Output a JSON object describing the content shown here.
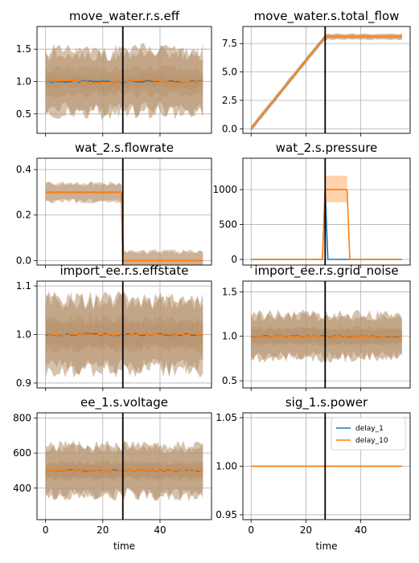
{
  "chart_data": [
    {
      "type": "line",
      "title": "move_water.r.s.eff",
      "xlabel": "",
      "ylim": [
        0.2,
        1.85
      ],
      "yticks": [
        0.5,
        1.0,
        1.5
      ],
      "ytick_labels": [
        "0.5",
        "1.0",
        "1.5"
      ],
      "xlim": [
        -3,
        58
      ],
      "xticks": [
        0,
        20,
        40
      ],
      "show_xtick_labels": false,
      "vline_x": 27,
      "grid": true,
      "series": [
        {
          "values": [
            1.0,
            1.0,
            1.0,
            1.0,
            1.0,
            1.0,
            1.0
          ],
          "x": [
            0,
            9,
            18,
            27,
            36,
            45,
            55
          ],
          "band": [
            0.75,
            1.25
          ],
          "outer": [
            0.45,
            1.6
          ]
        },
        {
          "values": [
            1.0,
            1.02,
            0.97,
            1.0,
            1.03,
            0.98,
            1.0
          ],
          "x": [
            0,
            9,
            18,
            27,
            36,
            45,
            55
          ],
          "band": [
            0.88,
            1.12
          ],
          "outer": [
            0.45,
            1.6
          ]
        }
      ]
    },
    {
      "type": "line",
      "title": "move_water.s.total_flow",
      "xlabel": "",
      "ylim": [
        -0.4,
        9.0
      ],
      "yticks": [
        0.0,
        2.5,
        5.0,
        7.5
      ],
      "ytick_labels": [
        "0.0",
        "2.5",
        "5.0",
        "7.5"
      ],
      "xlim": [
        -3,
        58
      ],
      "xticks": [
        0,
        20,
        40
      ],
      "show_xtick_labels": false,
      "vline_x": 27,
      "grid": true,
      "series": [
        {
          "x": [
            0,
            27,
            55
          ],
          "values": [
            0.0,
            8.1,
            8.1
          ],
          "band": [
            -0.25,
            0.35
          ]
        },
        {
          "x": [
            0,
            27,
            55
          ],
          "values": [
            0.0,
            8.1,
            8.1
          ],
          "band": [
            -0.25,
            0.35
          ]
        }
      ]
    },
    {
      "type": "line",
      "title": "wat_2.s.flowrate",
      "xlabel": "",
      "ylim": [
        -0.02,
        0.45
      ],
      "yticks": [
        0.0,
        0.2,
        0.4
      ],
      "ytick_labels": [
        "0.0",
        "0.2",
        "0.4"
      ],
      "xlim": [
        -3,
        58
      ],
      "xticks": [
        0,
        20,
        40
      ],
      "show_xtick_labels": false,
      "vline_x": 27,
      "grid": true,
      "series": [
        {
          "x": [
            0,
            26.5,
            27,
            55
          ],
          "values": [
            0.3,
            0.3,
            0.0,
            0.0
          ],
          "band": [
            0.25,
            0.35
          ]
        },
        {
          "x": [
            0,
            26.5,
            27,
            55
          ],
          "values": [
            0.3,
            0.3,
            0.0,
            0.0
          ],
          "band": [
            0.25,
            0.35
          ]
        }
      ]
    },
    {
      "type": "line",
      "title": "wat_2.s.pressure",
      "xlabel": "",
      "ylim": [
        -80,
        1450
      ],
      "yticks": [
        0,
        500,
        1000
      ],
      "ytick_labels": [
        "0",
        "500",
        "1000"
      ],
      "xlim": [
        -3,
        58
      ],
      "xticks": [
        0,
        20,
        40
      ],
      "show_xtick_labels": false,
      "vline_x": 27,
      "grid": true,
      "series": [
        {
          "x": [
            0,
            26,
            27,
            28,
            29,
            55
          ],
          "values": [
            0,
            0,
            1000,
            0,
            0,
            0
          ]
        },
        {
          "x": [
            0,
            26,
            27,
            35,
            36,
            55
          ],
          "values": [
            0,
            0,
            1000,
            1000,
            0,
            0
          ]
        }
      ]
    },
    {
      "type": "line",
      "title": "import_ee.r.s.effstate",
      "xlabel": "",
      "ylim": [
        0.89,
        1.11
      ],
      "yticks": [
        0.9,
        1.0,
        1.1
      ],
      "ytick_labels": [
        "0.9",
        "1.0",
        "1.1"
      ],
      "xlim": [
        -3,
        58
      ],
      "xticks": [
        0,
        20,
        40
      ],
      "show_xtick_labels": false,
      "vline_x": 27,
      "grid": true,
      "series": [
        {
          "x": [
            0,
            55
          ],
          "values": [
            1.0,
            1.0
          ],
          "band": [
            0.96,
            1.04
          ],
          "outer": [
            0.91,
            1.09
          ]
        },
        {
          "x": [
            0,
            55
          ],
          "values": [
            1.0,
            1.0
          ],
          "band": [
            0.97,
            1.03
          ],
          "outer": [
            0.91,
            1.09
          ]
        }
      ]
    },
    {
      "type": "line",
      "title": "import_ee.r.s.grid_noise",
      "xlabel": "",
      "ylim": [
        0.42,
        1.62
      ],
      "yticks": [
        0.5,
        1.0,
        1.5
      ],
      "ytick_labels": [
        "0.5",
        "1.0",
        "1.5"
      ],
      "xlim": [
        -3,
        58
      ],
      "xticks": [
        0,
        20,
        40
      ],
      "show_xtick_labels": false,
      "vline_x": 27,
      "grid": true,
      "series": [
        {
          "x": [
            0,
            55
          ],
          "values": [
            1.0,
            1.0
          ],
          "band": [
            0.88,
            1.12
          ],
          "outer": [
            0.7,
            1.3
          ]
        },
        {
          "x": [
            0,
            55
          ],
          "values": [
            1.0,
            1.0
          ],
          "band": [
            0.9,
            1.1
          ],
          "outer": [
            0.7,
            1.3
          ]
        }
      ]
    },
    {
      "type": "line",
      "title": "ee_1.s.voltage",
      "xlabel": "time",
      "ylim": [
        220,
        830
      ],
      "yticks": [
        400,
        600,
        800
      ],
      "ytick_labels": [
        "400",
        "600",
        "800"
      ],
      "xlim": [
        -3,
        58
      ],
      "xticks": [
        0,
        20,
        40
      ],
      "xtick_labels": [
        "0",
        "20",
        "40"
      ],
      "show_xtick_labels": true,
      "vline_x": 27,
      "grid": true,
      "series": [
        {
          "x": [
            0,
            55
          ],
          "values": [
            500,
            500
          ],
          "band": [
            440,
            560
          ],
          "outer": [
            330,
            680
          ]
        },
        {
          "x": [
            0,
            55
          ],
          "values": [
            500,
            500
          ],
          "band": [
            450,
            550
          ],
          "outer": [
            330,
            680
          ]
        }
      ]
    },
    {
      "type": "line",
      "title": "sig_1.s.power",
      "xlabel": "time",
      "ylim": [
        0.945,
        1.055
      ],
      "yticks": [
        0.95,
        1.0,
        1.05
      ],
      "ytick_labels": [
        "0.95",
        "1.00",
        "1.05"
      ],
      "xlim": [
        -3,
        58
      ],
      "xticks": [
        0,
        20,
        40
      ],
      "xtick_labels": [
        "0",
        "20",
        "40"
      ],
      "show_xtick_labels": true,
      "vline_x": 27,
      "grid": true,
      "legend": "top-right",
      "series": [
        {
          "name": "delay_1",
          "x": [
            0,
            55
          ],
          "values": [
            1.0,
            1.0
          ]
        },
        {
          "name": "delay_10",
          "x": [
            0,
            55
          ],
          "values": [
            1.0,
            1.0
          ]
        }
      ]
    }
  ],
  "colors": {
    "series_1": "#1f77b4",
    "series_2": "#ff7f0e",
    "band_mix": "#b5906a",
    "vline": "#000000",
    "grid": "#b0b0b0"
  }
}
